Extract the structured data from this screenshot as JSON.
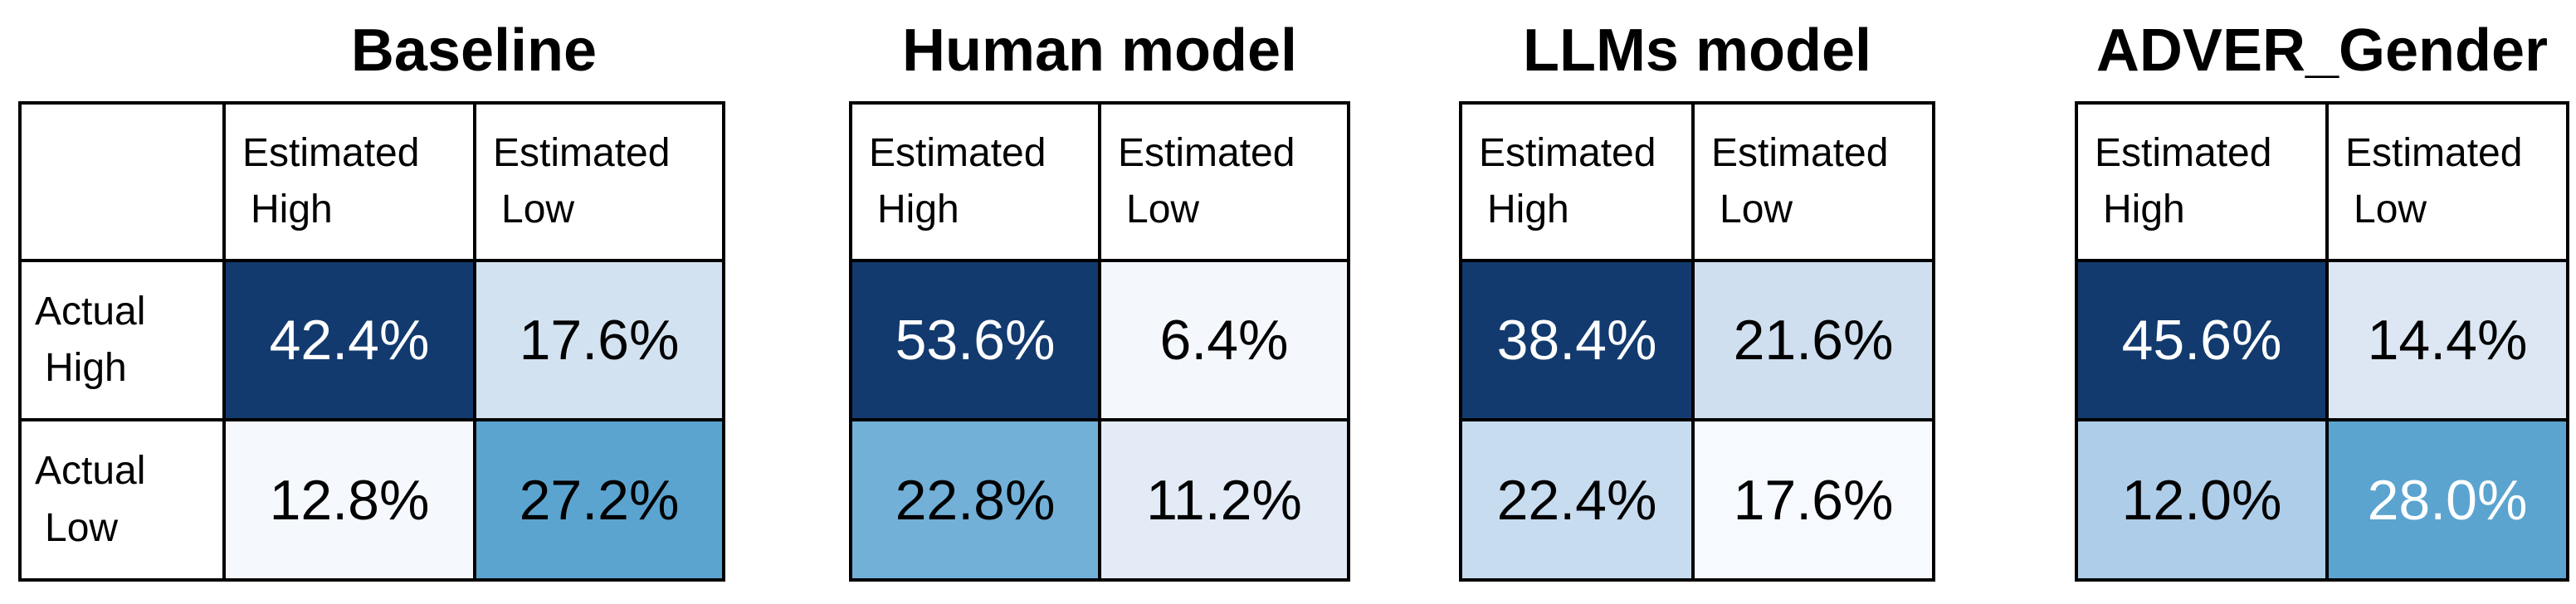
{
  "shared": {
    "col_headers": [
      {
        "line1": "Estimated",
        "line2": "High"
      },
      {
        "line1": "Estimated",
        "line2": "Low"
      }
    ],
    "row_headers": [
      {
        "line1": "Actual",
        "line2": "High"
      },
      {
        "line1": "Actual",
        "line2": "Low"
      }
    ]
  },
  "colors": {
    "border": "#000000",
    "background": "#ffffff",
    "dark_cell": "#123a6e",
    "medium_cell": "#5ba4d0"
  },
  "panels": [
    {
      "title": "Baseline",
      "cells": [
        [
          {
            "value": "42.4%",
            "bg": "#123a6e",
            "fg": "#ffffff"
          },
          {
            "value": "17.6%",
            "bg": "#d3e2f1",
            "fg": "#000000"
          }
        ],
        [
          {
            "value": "12.8%",
            "bg": "#f5f9fe",
            "fg": "#000000"
          },
          {
            "value": "27.2%",
            "bg": "#5ba4d0",
            "fg": "#000000"
          }
        ]
      ]
    },
    {
      "title": "Human model",
      "cells": [
        [
          {
            "value": "53.6%",
            "bg": "#123a6e",
            "fg": "#ffffff"
          },
          {
            "value": "6.4%",
            "bg": "#f4f8fc",
            "fg": "#000000"
          }
        ],
        [
          {
            "value": "22.8%",
            "bg": "#72b0d8",
            "fg": "#000000"
          },
          {
            "value": "11.2%",
            "bg": "#e2ebf6",
            "fg": "#000000"
          }
        ]
      ]
    },
    {
      "title": "LLMs model",
      "cells": [
        [
          {
            "value": "38.4%",
            "bg": "#123a6e",
            "fg": "#ffffff"
          },
          {
            "value": "21.6%",
            "bg": "#cfdfef",
            "fg": "#000000"
          }
        ],
        [
          {
            "value": "22.4%",
            "bg": "#c8dcef",
            "fg": "#000000"
          },
          {
            "value": "17.6%",
            "bg": "#f6f9fd",
            "fg": "#000000"
          }
        ]
      ]
    },
    {
      "title": "ADVER_Gender",
      "cells": [
        [
          {
            "value": "45.6%",
            "bg": "#123a6e",
            "fg": "#ffffff"
          },
          {
            "value": "14.4%",
            "bg": "#dce7f3",
            "fg": "#000000"
          }
        ],
        [
          {
            "value": "12.0%",
            "bg": "#aecde8",
            "fg": "#000000"
          },
          {
            "value": "28.0%",
            "bg": "#5ba4d0",
            "fg": "#ffffff"
          }
        ]
      ]
    }
  ],
  "chart_data": [
    {
      "type": "heatmap",
      "title": "Baseline",
      "x_labels": [
        "Estimated High",
        "Estimated Low"
      ],
      "y_labels": [
        "Actual High",
        "Actual Low"
      ],
      "values": [
        [
          42.4,
          17.6
        ],
        [
          12.8,
          27.2
        ]
      ],
      "unit": "%"
    },
    {
      "type": "heatmap",
      "title": "Human model",
      "x_labels": [
        "Estimated High",
        "Estimated Low"
      ],
      "y_labels": [
        "Actual High",
        "Actual Low"
      ],
      "values": [
        [
          53.6,
          6.4
        ],
        [
          22.8,
          11.2
        ]
      ],
      "unit": "%"
    },
    {
      "type": "heatmap",
      "title": "LLMs model",
      "x_labels": [
        "Estimated High",
        "Estimated Low"
      ],
      "y_labels": [
        "Actual High",
        "Actual Low"
      ],
      "values": [
        [
          38.4,
          21.6
        ],
        [
          22.4,
          17.6
        ]
      ],
      "unit": "%"
    },
    {
      "type": "heatmap",
      "title": "ADVER_Gender",
      "x_labels": [
        "Estimated High",
        "Estimated Low"
      ],
      "y_labels": [
        "Actual High",
        "Actual Low"
      ],
      "values": [
        [
          45.6,
          14.4
        ],
        [
          12.0,
          28.0
        ]
      ],
      "unit": "%"
    }
  ]
}
